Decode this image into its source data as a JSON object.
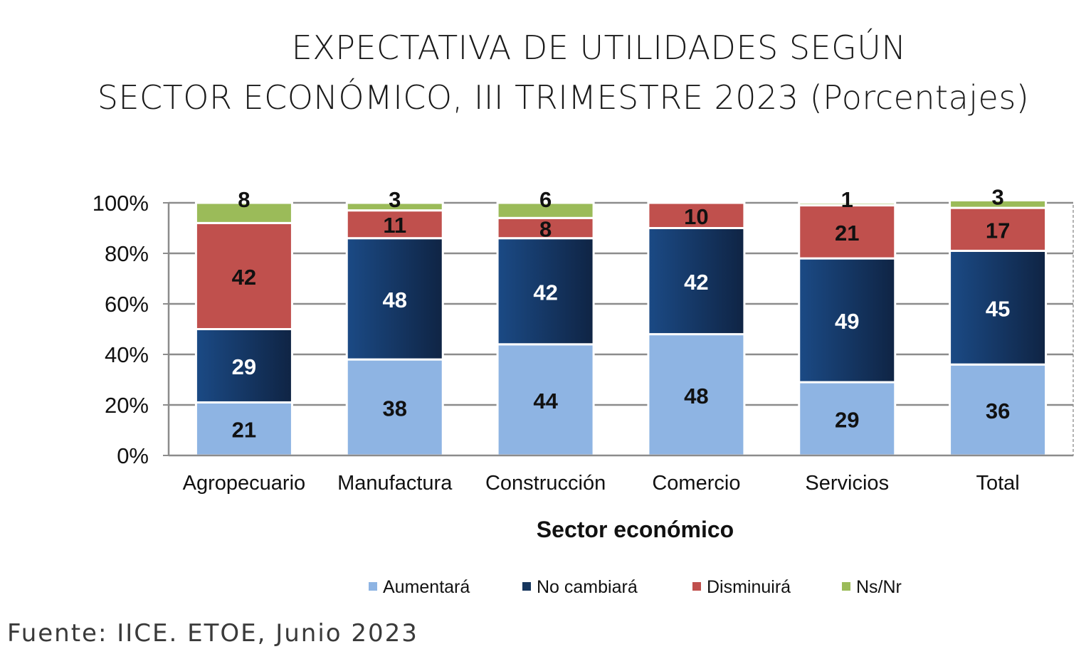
{
  "title_line1": "EXPECTATIVA DE UTILIDADES SEGÚN",
  "title_line2": "SECTOR ECONÓMICO, III TRIMESTRE 2023 (Porcentajes)",
  "source": "Fuente:  IICE. ETOE, Junio 2023",
  "chart_data": {
    "type": "bar",
    "stacked": true,
    "percent_stacked": true,
    "categories": [
      "Agropecuario",
      "Manufactura",
      "Construcción",
      "Comercio",
      "Servicios",
      "Total"
    ],
    "series": [
      {
        "name": "Aumentará",
        "color": "#8eb4e3",
        "label_color": "#111111",
        "values": [
          21,
          38,
          44,
          48,
          29,
          36
        ]
      },
      {
        "name": "No cambiará",
        "color": "#17375e",
        "label_color": "#ffffff",
        "values": [
          29,
          48,
          42,
          42,
          49,
          45
        ]
      },
      {
        "name": "Disminuirá",
        "color": "#c0504d",
        "label_color": "#111111",
        "values": [
          42,
          11,
          8,
          10,
          21,
          17
        ]
      },
      {
        "name": "Ns/Nr",
        "color": "#9bbb59",
        "label_color": "#111111",
        "values": [
          8,
          3,
          6,
          0,
          1,
          3
        ]
      }
    ],
    "value_labels": [
      [
        "21",
        "38",
        "44",
        "48",
        "29",
        "36"
      ],
      [
        "29",
        "48",
        "42",
        "42",
        "49",
        "45"
      ],
      [
        "42",
        "11",
        "8",
        "10",
        "21",
        "17"
      ],
      [
        "8",
        "3",
        "6",
        "",
        "1",
        "3"
      ]
    ],
    "xlabel": "Sector económico",
    "ylabel": "",
    "ylim": [
      0,
      100
    ],
    "yticks": [
      "0%",
      "20%",
      "40%",
      "60%",
      "80%",
      "100%"
    ],
    "grid": true,
    "legend_position": "bottom"
  }
}
